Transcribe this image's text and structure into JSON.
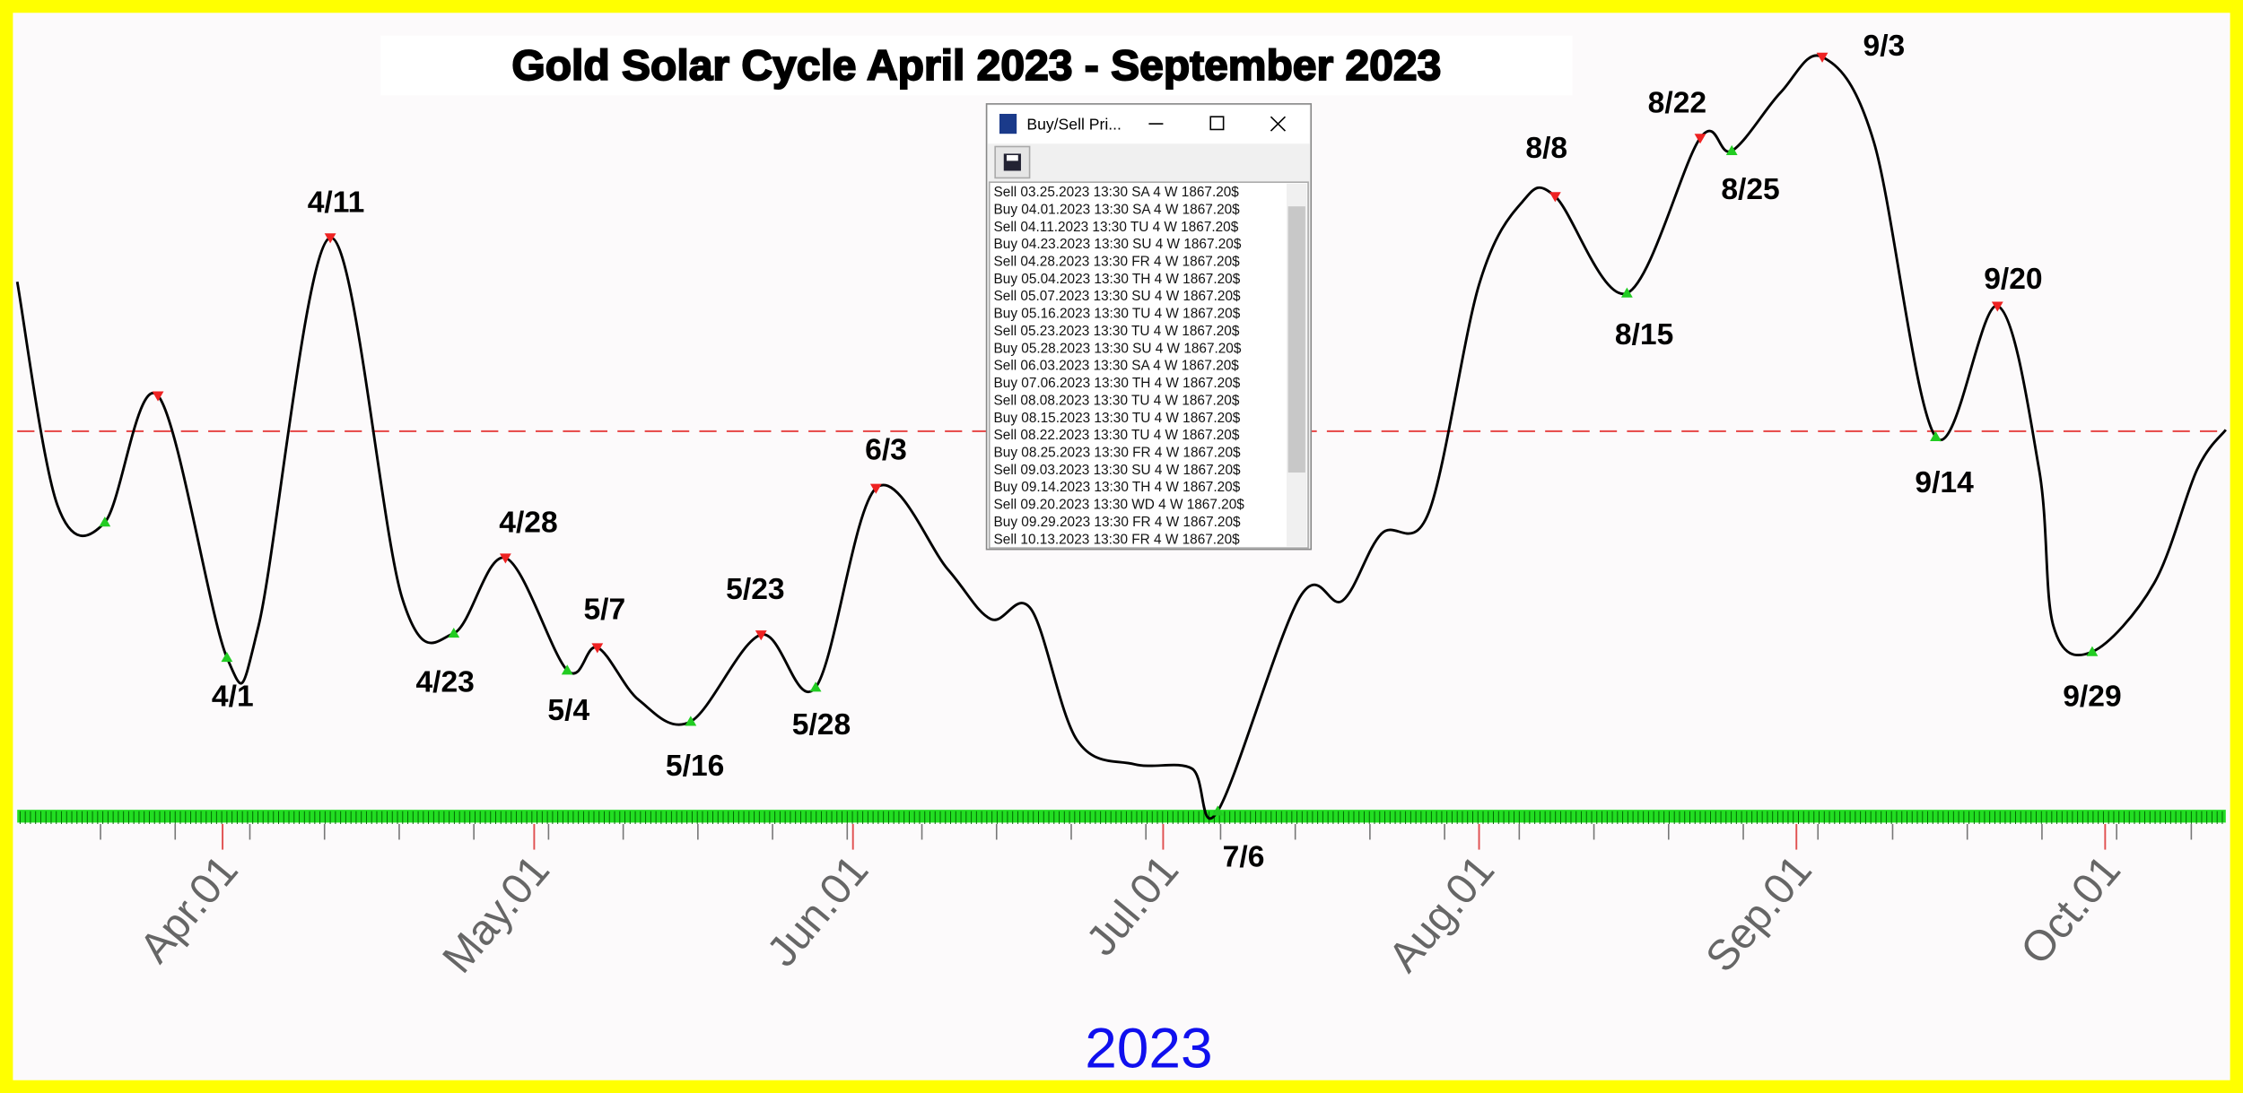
{
  "chart": {
    "title": "Gold Solar Cycle April 2023 - September 2023",
    "x_axis_labels": [
      "Apr.01",
      "May.01",
      "Jun.01",
      "Jul.01",
      "Aug.01",
      "Sep.01",
      "Oct.01"
    ],
    "year": "2023",
    "turning_points": [
      "4/11",
      "4/1",
      "4/23",
      "4/28",
      "5/4",
      "5/7",
      "5/16",
      "5/23",
      "5/28",
      "6/3",
      "7/6",
      "8/8",
      "8/15",
      "8/22",
      "8/25",
      "9/3",
      "9/14",
      "9/20",
      "9/29"
    ]
  },
  "window": {
    "title": "Buy/Sell Pri...",
    "rows": [
      "Sell 03.25.2023  13:30 SA  4 W  1867.20$",
      "Buy 04.01.2023  13:30 SA  4 W  1867.20$",
      "Sell 04.11.2023  13:30 TU  4 W  1867.20$",
      "Buy 04.23.2023  13:30 SU  4 W  1867.20$",
      "Sell 04.28.2023  13:30 FR  4 W  1867.20$",
      "Buy 05.04.2023  13:30 TH  4 W  1867.20$",
      "Sell 05.07.2023  13:30 SU  4 W  1867.20$",
      "Buy 05.16.2023  13:30 TU  4 W  1867.20$",
      "Sell 05.23.2023  13:30 TU  4 W  1867.20$",
      "Buy 05.28.2023  13:30 SU  4 W  1867.20$",
      "Sell 06.03.2023  13:30 SA  4 W  1867.20$",
      "Buy 07.06.2023  13:30 TH  4 W  1867.20$",
      "Sell 08.08.2023  13:30 TU  4 W  1867.20$",
      "Buy 08.15.2023  13:30 TU  4 W  1867.20$",
      "Sell 08.22.2023  13:30 TU  4 W  1867.20$",
      "Buy 08.25.2023  13:30 FR  4 W  1867.20$",
      "Sell 09.03.2023  13:30 SU  4 W  1867.20$",
      "Buy 09.14.2023  13:30 TH  4 W  1867.20$",
      "Sell 09.20.2023  13:30 WD  4 W  1867.20$",
      "Buy 09.29.2023  13:30 FR  4 W  1867.20$",
      "Sell 10.13.2023  13:30 FR  4 W  1867.20$"
    ]
  }
}
